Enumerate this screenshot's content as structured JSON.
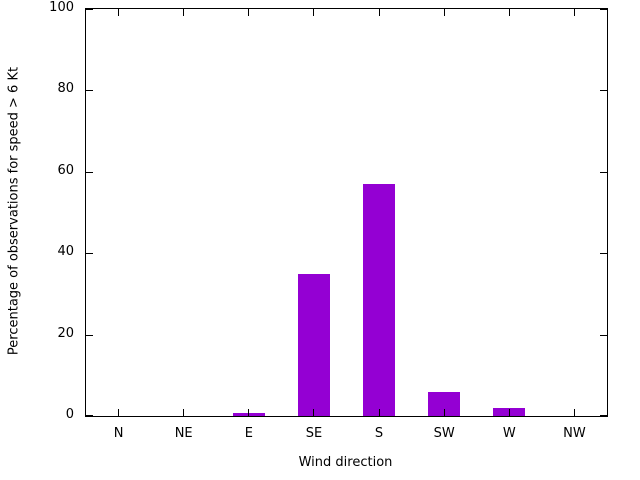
{
  "chart_data": {
    "type": "bar",
    "title": "",
    "xlabel": "Wind direction",
    "ylabel": "Percentage of observations for speed > 6 Kt",
    "categories": [
      "N",
      "NE",
      "E",
      "SE",
      "S",
      "SW",
      "W",
      "NW"
    ],
    "values": [
      0,
      0,
      0.7,
      35,
      57,
      6,
      2,
      0
    ],
    "ylim": [
      0,
      100
    ],
    "yticks": [
      0,
      20,
      40,
      60,
      80,
      100
    ],
    "bar_color": "#9400d3",
    "axis_color": "#000000",
    "grid": false,
    "legend_position": "none"
  }
}
